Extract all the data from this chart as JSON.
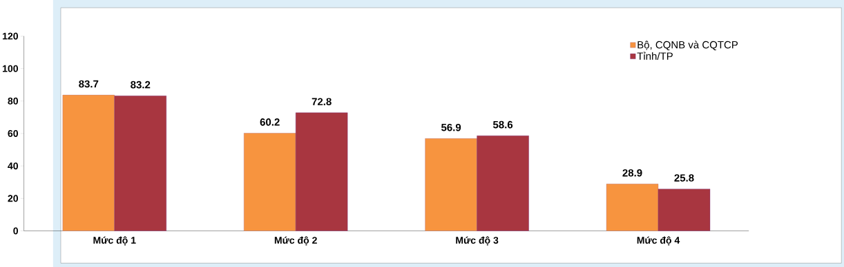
{
  "chart_data": {
    "type": "bar",
    "categories": [
      "Mức độ 1",
      "Mức độ 2",
      "Mức độ 3",
      "Mức độ 4"
    ],
    "series": [
      {
        "name": "Bộ, CQNB và CQTCP",
        "color": "#f7943f",
        "values": [
          83.7,
          60.2,
          56.9,
          28.9
        ]
      },
      {
        "name": "Tỉnh/TP",
        "color": "#a83640",
        "values": [
          83.2,
          72.8,
          58.6,
          25.8
        ]
      }
    ],
    "ylim": [
      0,
      120
    ],
    "yticks": [
      0,
      20,
      40,
      60,
      80,
      100,
      120
    ],
    "data_labels": true,
    "legend": "top right"
  }
}
